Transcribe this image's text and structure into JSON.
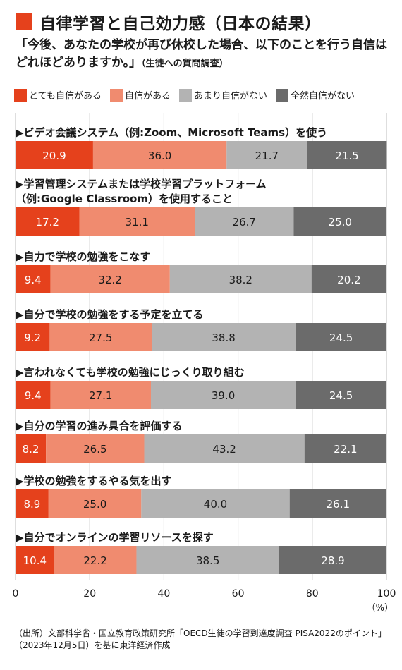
{
  "header": {
    "title": "自律学習と自己効力感（日本の結果）",
    "subtitle": "「今後、あなたの学校が再び休校した場合、以下のことを行う自信はどれほどありますか。」",
    "subtitle_note": "（生徒への質問調査）"
  },
  "colors": {
    "accent": "#e5411c",
    "very_confident": "#e5411c",
    "confident": "#f08b6f",
    "not_very_confident": "#b3b3b3",
    "not_at_all_confident": "#6b6b6b"
  },
  "source": "（出所）文部科学省・国立教育政策研究所「OECD生徒の学習到達度調査 PISA2022のポイント」（2023年12月5日）を基に東洋経済作成",
  "chart_data": {
    "type": "bar",
    "orientation": "horizontal",
    "stacked": true,
    "legend_position": "top",
    "grid": true,
    "categories": [
      [
        "▶ビデオ会議システム（例:Zoom、Microsoft Teams）を使う"
      ],
      [
        "▶学習管理システムまたは学校学習プラットフォーム",
        "（例:Google Classroom）を使用すること"
      ],
      [
        "▶自力で学校の勉強をこなす"
      ],
      [
        "▶自分で学校の勉強をする予定を立てる"
      ],
      [
        "▶言われなくても学校の勉強にじっくり取り組む"
      ],
      [
        "▶自分の学習の進み具合を評価する"
      ],
      [
        "▶学校の勉強をするやる気を出す"
      ],
      [
        "▶自分でオンラインの学習リソースを探す"
      ]
    ],
    "series": [
      {
        "name": "とても自信がある",
        "values": [
          20.9,
          17.2,
          9.4,
          9.2,
          9.4,
          8.2,
          8.9,
          10.4
        ]
      },
      {
        "name": "自信がある",
        "values": [
          36.0,
          31.1,
          32.2,
          27.5,
          27.1,
          26.5,
          25.0,
          22.2
        ]
      },
      {
        "name": "あまり自信がない",
        "values": [
          21.7,
          26.7,
          38.2,
          38.8,
          39.0,
          43.2,
          40.0,
          38.5
        ]
      },
      {
        "name": "全然自信がない",
        "values": [
          21.5,
          25.0,
          20.2,
          24.5,
          24.5,
          22.1,
          26.1,
          28.9
        ]
      }
    ],
    "xlim": [
      0,
      100
    ],
    "xticks": [
      0,
      20,
      40,
      60,
      80,
      100
    ],
    "xlabel": "（%）"
  }
}
